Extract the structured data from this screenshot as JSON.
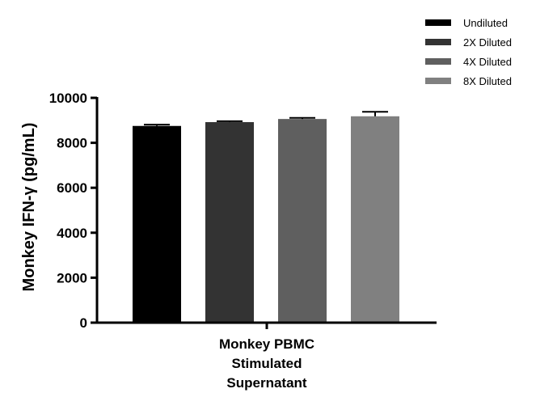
{
  "chart_data": {
    "type": "bar",
    "title": "",
    "ylabel": "Monkey IFN-γ (pg/mL)",
    "xlabel": "",
    "category_lines": [
      "Monkey PBMC",
      "Stimulated",
      "Supernatant"
    ],
    "ylim": [
      0,
      10000
    ],
    "yticks": [
      "0",
      "2000",
      "4000",
      "6000",
      "8000",
      "10000"
    ],
    "legend_position": "top-right",
    "grid": false,
    "series": [
      {
        "name": "Undiluted",
        "value": 8750,
        "error": 60,
        "color": "#000000"
      },
      {
        "name": "2X Diluted",
        "value": 8920,
        "error": 40,
        "color": "#333333"
      },
      {
        "name": "4X Diluted",
        "value": 9060,
        "error": 50,
        "color": "#5f5f5f"
      },
      {
        "name": "8X Diluted",
        "value": 9180,
        "error": 200,
        "color": "#808080"
      }
    ]
  }
}
